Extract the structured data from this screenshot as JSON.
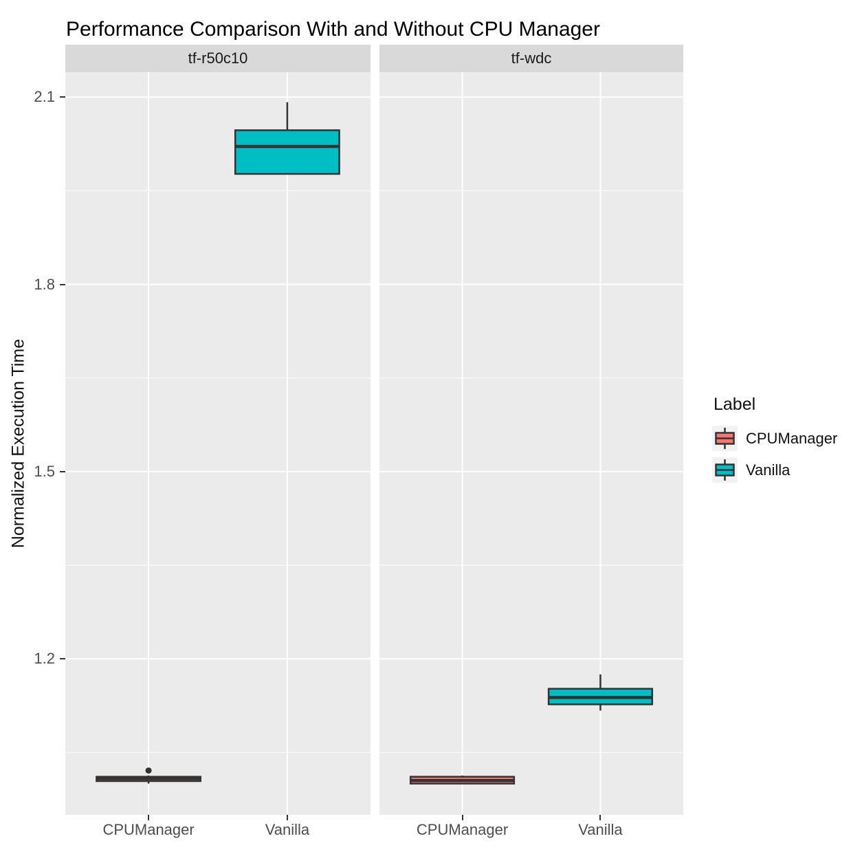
{
  "chart_data": {
    "type": "boxplot",
    "title": "Performance Comparison With and Without CPU Manager",
    "ylabel": "Normalized Execution Time",
    "xlabel": "",
    "ylim": [
      0.95,
      2.14
    ],
    "yticks": [
      1.2,
      1.5,
      1.8,
      2.1
    ],
    "yticks_minor": [
      1.05,
      1.35,
      1.65,
      1.95
    ],
    "grid": true,
    "facets": [
      {
        "label": "tf-r50c10",
        "categories": [
          "CPUManager",
          "Vanilla"
        ],
        "boxes": [
          {
            "category": "CPUManager",
            "group": "CPUManager",
            "whisker_low": 1.0,
            "q1": 1.004,
            "median": 1.008,
            "q3": 1.011,
            "whisker_high": 1.013,
            "outliers": [
              1.021
            ]
          },
          {
            "category": "Vanilla",
            "group": "Vanilla",
            "whisker_low": 1.977,
            "q1": 1.977,
            "median": 2.021,
            "q3": 2.047,
            "whisker_high": 2.092,
            "outliers": []
          }
        ]
      },
      {
        "label": "tf-wdc",
        "categories": [
          "CPUManager",
          "Vanilla"
        ],
        "boxes": [
          {
            "category": "CPUManager",
            "group": "CPUManager",
            "whisker_low": 0.999,
            "q1": 1.0,
            "median": 1.005,
            "q3": 1.011,
            "whisker_high": 1.013,
            "outliers": []
          },
          {
            "category": "Vanilla",
            "group": "Vanilla",
            "whisker_low": 1.117,
            "q1": 1.127,
            "median": 1.138,
            "q3": 1.152,
            "whisker_high": 1.175,
            "outliers": []
          }
        ]
      }
    ],
    "legend": {
      "title": "Label",
      "position": "right",
      "entries": [
        {
          "label": "CPUManager",
          "color": "#F8766D"
        },
        {
          "label": "Vanilla",
          "color": "#00BFC4"
        }
      ]
    },
    "colors": {
      "cpumanager_fill": "#F8766D",
      "vanilla_fill": "#00BFC4",
      "box_border": "#333333",
      "outlier": "#333333",
      "panel_bg": "#EBEBEB",
      "strip_bg": "#D9D9D9",
      "gridline": "#FFFFFF",
      "tick_text": "#4D4D4D",
      "text": "#000000"
    }
  }
}
